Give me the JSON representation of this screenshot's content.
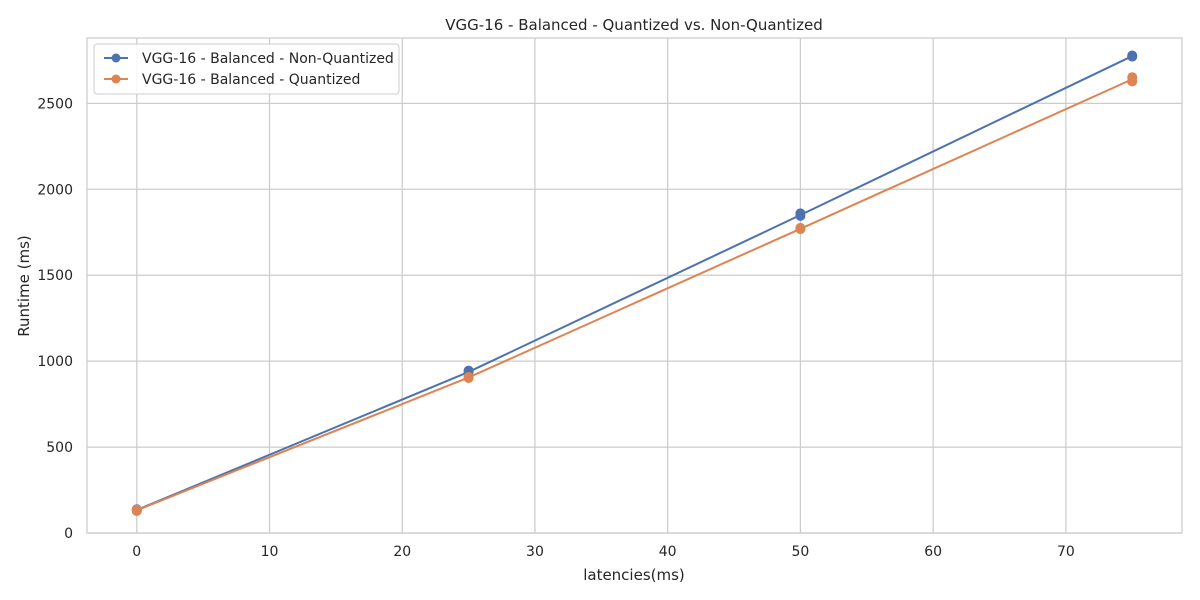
{
  "chart_data": {
    "type": "line",
    "title": "VGG-16 - Balanced - Quantized vs. Non-Quantized",
    "xlabel": "latencies(ms)",
    "ylabel": "Runtime (ms)",
    "xlim": [
      -3.75,
      78.75
    ],
    "ylim": [
      0,
      2880
    ],
    "xticks": [
      0,
      10,
      20,
      30,
      40,
      50,
      60,
      70
    ],
    "yticks": [
      0,
      500,
      1000,
      1500,
      2000,
      2500
    ],
    "grid": true,
    "legend_position": "top-left",
    "series": [
      {
        "name": "VGG-16 - Balanced - Non-Quantized",
        "color": "#4c72b0",
        "x": [
          0,
          25,
          50,
          75
        ],
        "y": [
          134,
          937,
          1850,
          2775
        ],
        "points": [
          {
            "x": 0,
            "y": 130
          },
          {
            "x": 0,
            "y": 138
          },
          {
            "x": 25,
            "y": 937
          },
          {
            "x": 25,
            "y": 945
          },
          {
            "x": 50,
            "y": 1845
          },
          {
            "x": 50,
            "y": 1860
          },
          {
            "x": 75,
            "y": 2772
          },
          {
            "x": 75,
            "y": 2778
          }
        ]
      },
      {
        "name": "VGG-16 - Balanced - Quantized",
        "color": "#dd8452",
        "x": [
          0,
          25,
          50,
          75
        ],
        "y": [
          132,
          905,
          1770,
          2640
        ],
        "points": [
          {
            "x": 0,
            "y": 128
          },
          {
            "x": 0,
            "y": 136
          },
          {
            "x": 25,
            "y": 902
          },
          {
            "x": 25,
            "y": 908
          },
          {
            "x": 50,
            "y": 1768
          },
          {
            "x": 50,
            "y": 1775
          },
          {
            "x": 75,
            "y": 2628
          },
          {
            "x": 75,
            "y": 2652
          }
        ]
      }
    ]
  }
}
